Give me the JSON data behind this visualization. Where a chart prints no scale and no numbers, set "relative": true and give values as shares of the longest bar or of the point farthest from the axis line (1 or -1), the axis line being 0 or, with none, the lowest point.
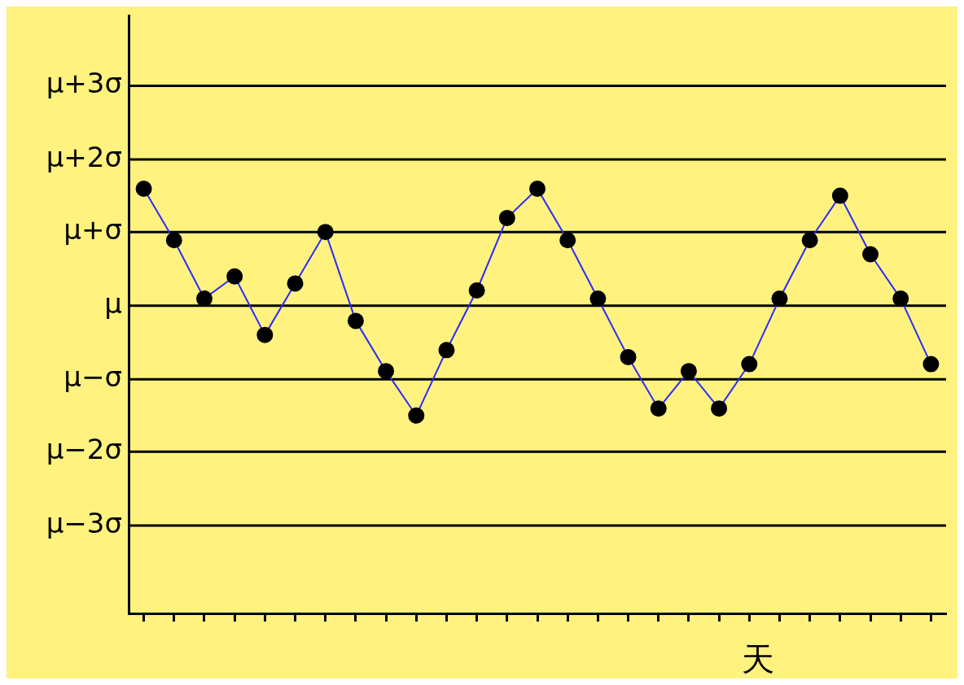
{
  "chart_data": {
    "type": "line",
    "annotations": [
      "天"
    ],
    "relative": true,
    "categories": [
      null,
      null,
      null,
      null,
      null,
      null,
      null,
      null,
      null,
      null,
      null,
      null,
      null,
      null,
      null,
      null,
      null,
      null,
      null,
      null,
      null,
      null,
      null,
      null,
      null,
      null,
      null
    ],
    "series": [
      {
        "color": "#2b2bff",
        "values": [
          1,
          0.56,
          0.06,
          0.25,
          -0.25,
          0.19,
          0.63,
          -0.13,
          -0.56,
          -0.94,
          -0.38,
          0.13,
          0.75,
          1,
          0.56,
          0.06,
          -0.44,
          -0.88,
          -0.56,
          -0.88,
          -0.5,
          0.06,
          0.56,
          0.94,
          0.44,
          0.06,
          -0.5
        ]
      }
    ],
    "ref_lines": [
      {
        "axis": "y",
        "value": 1.88,
        "label": "μ+3σ"
      },
      {
        "axis": "y",
        "value": 1.25,
        "label": "μ+2σ"
      },
      {
        "axis": "y",
        "value": 0.63,
        "label": "μ+σ"
      },
      {
        "axis": "y",
        "value": 0,
        "label": "μ"
      },
      {
        "axis": "y",
        "value": -0.63,
        "label": "μ−σ"
      },
      {
        "axis": "y",
        "value": -1.25,
        "label": "μ−2σ"
      },
      {
        "axis": "y",
        "value": -1.88,
        "label": "μ−3σ"
      }
    ],
    "legend": false,
    "tick_labels": false,
    "marker": "circle",
    "line_style": "solid"
  }
}
